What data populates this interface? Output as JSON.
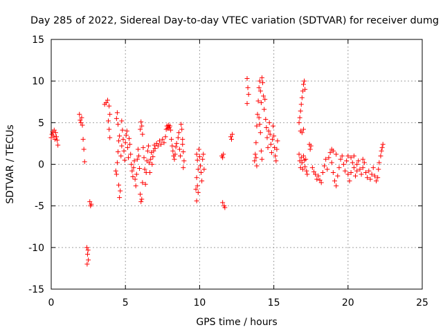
{
  "chart_data": {
    "type": "scatter",
    "title": "Day 285 of 2022, Sidereal Day-to-day VTEC variation (SDTVAR) for receiver dumg",
    "xlabel": "GPS time / hours",
    "ylabel": "SDTVAR / TECUs",
    "xlim": [
      0,
      25
    ],
    "ylim": [
      -15,
      15
    ],
    "xticks": [
      0,
      5,
      10,
      15,
      20,
      25
    ],
    "yticks": [
      -15,
      -10,
      -5,
      0,
      5,
      10,
      15
    ],
    "xtick_labels": [
      "0",
      "5",
      "10",
      "15",
      "20",
      "25"
    ],
    "ytick_labels": [
      "-15",
      "-10",
      "-5",
      "0",
      "5",
      "10",
      "15"
    ],
    "grid": true,
    "legend": "none",
    "marker": "+",
    "color": "#ff0000",
    "series": [
      {
        "name": "SDTVAR",
        "points": [
          [
            0.0,
            3.2
          ],
          [
            0.05,
            3.6
          ],
          [
            0.1,
            3.9
          ],
          [
            0.15,
            3.4
          ],
          [
            0.2,
            4.1
          ],
          [
            0.25,
            3.0
          ],
          [
            0.3,
            3.8
          ],
          [
            0.35,
            3.3
          ],
          [
            0.4,
            2.9
          ],
          [
            0.45,
            2.3
          ],
          [
            1.9,
            6.0
          ],
          [
            1.95,
            5.3
          ],
          [
            2.0,
            5.0
          ],
          [
            2.05,
            5.6
          ],
          [
            2.1,
            4.7
          ],
          [
            2.15,
            3.0
          ],
          [
            2.2,
            1.8
          ],
          [
            2.25,
            0.3
          ],
          [
            2.4,
            -10.0
          ],
          [
            2.45,
            -10.8
          ],
          [
            2.5,
            -11.5
          ],
          [
            2.42,
            -12.0
          ],
          [
            2.48,
            -10.3
          ],
          [
            2.6,
            -4.5
          ],
          [
            2.65,
            -5.0
          ],
          [
            2.7,
            -4.8
          ],
          [
            3.6,
            7.2
          ],
          [
            3.7,
            7.4
          ],
          [
            3.8,
            7.7
          ],
          [
            3.9,
            7.0
          ],
          [
            3.95,
            6.0
          ],
          [
            3.85,
            5.2
          ],
          [
            3.9,
            4.2
          ],
          [
            3.95,
            3.2
          ],
          [
            4.35,
            -0.8
          ],
          [
            4.4,
            -1.2
          ],
          [
            4.45,
            0.2
          ],
          [
            4.5,
            1.5
          ],
          [
            4.55,
            2.8
          ],
          [
            4.6,
            3.4
          ],
          [
            4.55,
            -2.5
          ],
          [
            4.6,
            -4.0
          ],
          [
            4.65,
            -3.2
          ],
          [
            4.7,
            1.0
          ],
          [
            4.75,
            2.2
          ],
          [
            4.8,
            4.1
          ],
          [
            4.85,
            3.0
          ],
          [
            4.9,
            1.6
          ],
          [
            4.95,
            0.5
          ],
          [
            5.0,
            2.6
          ],
          [
            5.05,
            3.5
          ],
          [
            5.1,
            4.0
          ],
          [
            5.15,
            2.0
          ],
          [
            5.2,
            0.8
          ],
          [
            5.25,
            3.1
          ],
          [
            5.3,
            2.4
          ],
          [
            5.35,
            1.2
          ],
          [
            5.4,
            0.0
          ],
          [
            5.45,
            -0.8
          ],
          [
            5.5,
            -1.5
          ],
          [
            5.55,
            -0.4
          ],
          [
            4.4,
            5.5
          ],
          [
            4.45,
            6.2
          ],
          [
            4.5,
            4.8
          ],
          [
            4.75,
            5.2
          ],
          [
            5.6,
            0.4
          ],
          [
            5.65,
            -1.8
          ],
          [
            5.7,
            -2.6
          ],
          [
            5.75,
            -1.2
          ],
          [
            5.8,
            0.6
          ],
          [
            5.85,
            1.8
          ],
          [
            5.9,
            1.0
          ],
          [
            5.95,
            -0.5
          ],
          [
            6.0,
            -3.6
          ],
          [
            6.05,
            -4.5
          ],
          [
            6.1,
            -4.2
          ],
          [
            6.15,
            -2.2
          ],
          [
            6.0,
            4.2
          ],
          [
            6.05,
            5.1
          ],
          [
            6.1,
            4.6
          ],
          [
            6.15,
            3.6
          ],
          [
            6.2,
            2.0
          ],
          [
            6.25,
            0.8
          ],
          [
            6.3,
            -0.6
          ],
          [
            6.35,
            -2.4
          ],
          [
            6.4,
            -1.0
          ],
          [
            6.45,
            0.4
          ],
          [
            6.5,
            1.6
          ],
          [
            6.55,
            2.2
          ],
          [
            6.6,
            0.2
          ],
          [
            6.65,
            -1.0
          ],
          [
            6.7,
            0.6
          ],
          [
            6.75,
            1.4
          ],
          [
            6.8,
            0.0
          ],
          [
            6.85,
            0.9
          ],
          [
            6.9,
            1.6
          ],
          [
            6.95,
            2.3
          ],
          [
            7.0,
            1.9
          ],
          [
            7.1,
            2.5
          ],
          [
            7.2,
            2.2
          ],
          [
            7.3,
            2.8
          ],
          [
            7.4,
            2.4
          ],
          [
            7.5,
            3.0
          ],
          [
            7.6,
            2.6
          ],
          [
            7.7,
            3.3
          ],
          [
            7.75,
            4.2
          ],
          [
            7.8,
            4.6
          ],
          [
            7.85,
            4.3
          ],
          [
            7.9,
            4.7
          ],
          [
            7.95,
            4.4
          ],
          [
            8.0,
            4.6
          ],
          [
            8.05,
            4.1
          ],
          [
            8.1,
            3.0
          ],
          [
            8.15,
            2.2
          ],
          [
            8.2,
            1.6
          ],
          [
            8.25,
            1.0
          ],
          [
            8.3,
            0.6
          ],
          [
            8.35,
            1.2
          ],
          [
            8.4,
            2.1
          ],
          [
            8.45,
            2.5
          ],
          [
            8.55,
            3.2
          ],
          [
            8.6,
            3.8
          ],
          [
            8.65,
            1.8
          ],
          [
            8.7,
            1.0
          ],
          [
            8.75,
            4.8
          ],
          [
            8.8,
            4.2
          ],
          [
            8.85,
            3.0
          ],
          [
            8.9,
            1.5
          ],
          [
            8.95,
            0.4
          ],
          [
            8.9,
            -0.4
          ],
          [
            8.85,
            2.4
          ],
          [
            9.8,
            1.2
          ],
          [
            9.85,
            0.5
          ],
          [
            9.9,
            -0.6
          ],
          [
            9.8,
            -1.6
          ],
          [
            9.85,
            -2.6
          ],
          [
            9.9,
            -3.4
          ],
          [
            9.8,
            -4.4
          ],
          [
            9.75,
            -3.0
          ],
          [
            9.95,
            1.8
          ],
          [
            10.0,
            0.9
          ],
          [
            10.05,
            -0.2
          ],
          [
            10.1,
            -1.0
          ],
          [
            10.15,
            -2.0
          ],
          [
            10.2,
            0.6
          ],
          [
            10.25,
            1.2
          ],
          [
            10.3,
            -0.6
          ],
          [
            11.5,
            1.0
          ],
          [
            11.55,
            0.8
          ],
          [
            11.6,
            1.2
          ],
          [
            11.55,
            -4.6
          ],
          [
            11.65,
            -5.0
          ],
          [
            11.7,
            -5.2
          ],
          [
            12.1,
            3.3
          ],
          [
            12.15,
            3.0
          ],
          [
            12.2,
            3.6
          ],
          [
            13.2,
            10.3
          ],
          [
            13.25,
            9.2
          ],
          [
            13.3,
            8.4
          ],
          [
            13.2,
            7.3
          ],
          [
            13.7,
            0.4
          ],
          [
            13.75,
            1.2
          ],
          [
            13.8,
            2.6
          ],
          [
            13.85,
            4.6
          ],
          [
            13.9,
            6.0
          ],
          [
            13.95,
            7.6
          ],
          [
            14.0,
            9.2
          ],
          [
            14.05,
            10.0
          ],
          [
            14.1,
            8.8
          ],
          [
            14.15,
            7.4
          ],
          [
            14.2,
            10.4
          ],
          [
            14.25,
            9.8
          ],
          [
            14.3,
            8.2
          ],
          [
            14.35,
            6.6
          ],
          [
            14.4,
            7.8
          ],
          [
            14.45,
            5.4
          ],
          [
            14.5,
            4.4
          ],
          [
            14.55,
            3.2
          ],
          [
            14.6,
            2.0
          ],
          [
            14.65,
            4.0
          ],
          [
            14.7,
            5.0
          ],
          [
            14.75,
            3.6
          ],
          [
            14.8,
            2.4
          ],
          [
            14.85,
            1.4
          ],
          [
            14.9,
            3.0
          ],
          [
            14.95,
            4.6
          ],
          [
            15.0,
            3.4
          ],
          [
            15.05,
            2.0
          ],
          [
            15.1,
            1.0
          ],
          [
            15.15,
            0.4
          ],
          [
            15.2,
            1.8
          ],
          [
            15.25,
            2.8
          ],
          [
            14.0,
            5.6
          ],
          [
            14.05,
            4.8
          ],
          [
            14.1,
            3.8
          ],
          [
            14.15,
            1.6
          ],
          [
            14.2,
            0.6
          ],
          [
            13.8,
            0.8
          ],
          [
            13.85,
            -0.2
          ],
          [
            16.7,
            5.0
          ],
          [
            16.75,
            5.6
          ],
          [
            16.8,
            6.4
          ],
          [
            16.85,
            7.2
          ],
          [
            16.9,
            8.0
          ],
          [
            16.95,
            8.8
          ],
          [
            17.0,
            9.6
          ],
          [
            17.05,
            10.0
          ],
          [
            17.1,
            9.0
          ],
          [
            16.8,
            4.0
          ],
          [
            16.9,
            3.8
          ],
          [
            17.0,
            4.2
          ],
          [
            16.7,
            1.2
          ],
          [
            16.75,
            0.4
          ],
          [
            16.8,
            -0.4
          ],
          [
            16.85,
            0.8
          ],
          [
            16.9,
            0.2
          ],
          [
            16.95,
            -0.6
          ],
          [
            17.0,
            1.0
          ],
          [
            17.05,
            0.5
          ],
          [
            17.1,
            -0.3
          ],
          [
            17.15,
            0.6
          ],
          [
            17.2,
            -0.8
          ],
          [
            17.25,
            -1.2
          ],
          [
            17.4,
            2.4
          ],
          [
            17.45,
            1.8
          ],
          [
            17.5,
            2.2
          ],
          [
            17.6,
            -0.4
          ],
          [
            17.7,
            -0.9
          ],
          [
            17.8,
            -1.2
          ],
          [
            17.9,
            -1.8
          ],
          [
            18.0,
            -1.4
          ],
          [
            18.1,
            -1.9
          ],
          [
            18.2,
            -2.2
          ],
          [
            18.3,
            -1.0
          ],
          [
            18.4,
            -0.2
          ],
          [
            18.5,
            0.6
          ],
          [
            18.6,
            -0.6
          ],
          [
            18.7,
            0.8
          ],
          [
            18.8,
            1.4
          ],
          [
            18.9,
            0.2
          ],
          [
            19.0,
            -1.0
          ],
          [
            19.1,
            -2.0
          ],
          [
            19.2,
            -2.6
          ],
          [
            19.3,
            -1.4
          ],
          [
            19.4,
            -0.4
          ],
          [
            19.5,
            0.6
          ],
          [
            19.6,
            1.0
          ],
          [
            19.7,
            0.0
          ],
          [
            19.8,
            -0.8
          ],
          [
            19.9,
            0.4
          ],
          [
            20.0,
            -1.2
          ],
          [
            20.1,
            -2.0
          ],
          [
            20.2,
            -1.0
          ],
          [
            20.3,
            0.2
          ],
          [
            20.4,
            -0.4
          ],
          [
            20.5,
            -1.4
          ],
          [
            20.6,
            -0.8
          ],
          [
            20.7,
            0.4
          ],
          [
            20.8,
            -0.6
          ],
          [
            20.9,
            -1.2
          ],
          [
            21.0,
            -0.4
          ],
          [
            21.1,
            0.2
          ],
          [
            21.2,
            -1.0
          ],
          [
            21.3,
            -1.6
          ],
          [
            21.4,
            -0.8
          ],
          [
            21.5,
            -1.8
          ],
          [
            21.6,
            -1.2
          ],
          [
            21.7,
            -0.4
          ],
          [
            21.8,
            -1.4
          ],
          [
            21.9,
            -2.0
          ],
          [
            22.0,
            -1.6
          ],
          [
            22.05,
            -0.6
          ],
          [
            22.1,
            0.2
          ],
          [
            18.9,
            1.8
          ],
          [
            19.0,
            1.6
          ],
          [
            19.2,
            1.2
          ],
          [
            20.0,
            1.0
          ],
          [
            20.2,
            0.8
          ],
          [
            20.4,
            1.0
          ],
          [
            20.6,
            0.0
          ],
          [
            21.0,
            0.6
          ],
          [
            22.2,
            1.0
          ],
          [
            22.25,
            1.6
          ],
          [
            22.3,
            2.0
          ],
          [
            22.35,
            2.4
          ]
        ]
      }
    ]
  }
}
